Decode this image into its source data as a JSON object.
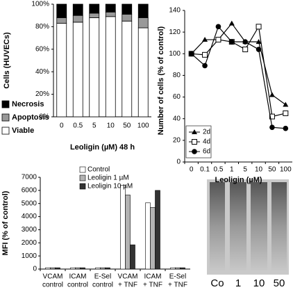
{
  "chart_data": [
    {
      "type": "stacked_bar",
      "x_label": "Leoligin (µM) 48 h",
      "y_label": "Cells (HUVECs)",
      "categories": [
        "0",
        "0.5",
        "5",
        "10",
        "50",
        "100"
      ],
      "series": [
        {
          "name": "Necrosis",
          "color": "#000000",
          "values": [
            12,
            10,
            8,
            7,
            9,
            12
          ]
        },
        {
          "name": "Apoptosis",
          "color": "#999999",
          "values": [
            5,
            6,
            4,
            4,
            6,
            9
          ]
        },
        {
          "name": "Viable",
          "color": "#ffffff",
          "values": [
            83,
            84,
            88,
            89,
            85,
            79
          ]
        }
      ],
      "ylim": [
        0,
        100
      ],
      "yticks": [
        {
          "value": 0,
          "label": "0%"
        },
        {
          "value": 20,
          "label": "20%"
        },
        {
          "value": 40,
          "label": "40%"
        },
        {
          "value": 60,
          "label": "60%"
        },
        {
          "value": 80,
          "label": "80%"
        },
        {
          "value": 100,
          "label": "100%"
        }
      ]
    },
    {
      "type": "line",
      "x_label": "Leoligin (µM)",
      "y_label": "Number of cells (% of control)",
      "categories": [
        "0",
        "0.1",
        "0.5",
        "1",
        "5",
        "10",
        "50",
        "100"
      ],
      "series": [
        {
          "name": "2d",
          "color": "#000000",
          "marker": "triangle",
          "values": [
            100,
            113,
            113,
            128,
            111,
            111,
            62,
            53
          ]
        },
        {
          "name": "4d",
          "color": "#000000",
          "marker": "square",
          "values": [
            100,
            99,
            113,
            111,
            104,
            125,
            42,
            45
          ]
        },
        {
          "name": "6d",
          "color": "#000000",
          "marker": "circle",
          "values": [
            100,
            89,
            125,
            111,
            111,
            104,
            32,
            31
          ]
        }
      ],
      "ylim": [
        0,
        140
      ],
      "yticks": [
        0,
        20,
        40,
        60,
        80,
        100,
        120,
        140
      ]
    },
    {
      "type": "bar",
      "y_label": "MFI (% of control)",
      "categories": [
        [
          "VCAM",
          "control"
        ],
        [
          "ICAM",
          "control"
        ],
        [
          "E-Sel",
          "control"
        ],
        [
          "VCAM",
          "+ TNF"
        ],
        [
          "ICAM",
          "+ TNF"
        ],
        [
          "E-Sel",
          "+ TNF"
        ]
      ],
      "series": [
        {
          "name": "Control",
          "color": "#ffffff",
          "values": [
            100,
            100,
            100,
            6400,
            5050,
            100
          ]
        },
        {
          "name": "Leoligin 1 µM",
          "color": "#b3b3b3",
          "values": [
            100,
            100,
            100,
            5650,
            4700,
            100
          ]
        },
        {
          "name": "Leoligin 10 µM",
          "color": "#333333",
          "values": [
            100,
            100,
            100,
            1850,
            6000,
            100
          ]
        }
      ],
      "ylim": [
        0,
        7000
      ],
      "yticks": [
        0,
        1000,
        2000,
        3000,
        4000,
        5000,
        6000,
        7000
      ]
    }
  ],
  "gel": {
    "lanes": [
      "Co",
      "1",
      "10",
      "50"
    ]
  }
}
